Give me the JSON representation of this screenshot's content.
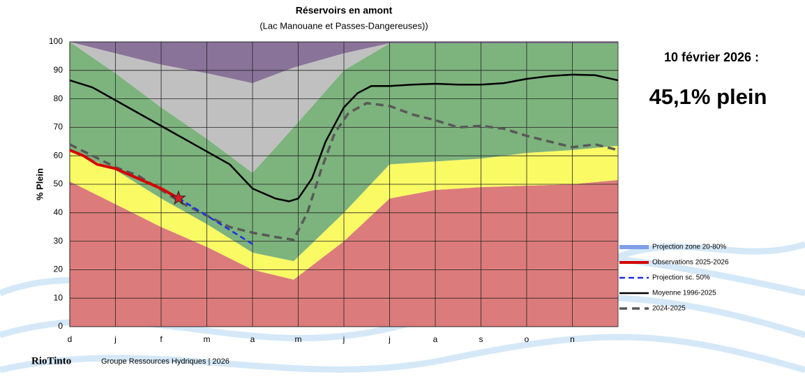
{
  "chart_data": {
    "type": "zone-line",
    "title": "Réservoirs en amont",
    "subtitle": "(Lac Manouane et Passes-Dangereuses))",
    "y_label": "% Plein",
    "xlim": [
      0,
      12
    ],
    "xticks": [
      {
        "value": 0,
        "label": "d"
      },
      {
        "value": 1,
        "label": "j"
      },
      {
        "value": 2,
        "label": "f"
      },
      {
        "value": 3,
        "label": "m"
      },
      {
        "value": 4,
        "label": "a"
      },
      {
        "value": 5,
        "label": "m"
      },
      {
        "value": 6,
        "label": "j"
      },
      {
        "value": 7,
        "label": "j"
      },
      {
        "value": 8,
        "label": "a"
      },
      {
        "value": 9,
        "label": "s"
      },
      {
        "value": 10,
        "label": "o"
      },
      {
        "value": 11,
        "label": "n"
      }
    ],
    "ylim": [
      0,
      100
    ],
    "yticks": [
      0,
      10,
      20,
      30,
      40,
      50,
      60,
      70,
      80,
      90,
      100
    ],
    "grid": true,
    "zone_x": [
      0,
      1,
      2,
      3,
      4,
      4.9,
      6,
      7,
      8,
      9,
      10,
      11,
      12
    ],
    "zones": [
      {
        "color": "#dc7b7b",
        "upper": [
          51,
          43,
          35,
          28,
          20,
          16.5,
          30,
          45,
          48,
          49,
          49.5,
          50,
          51.5
        ]
      },
      {
        "color": "#fafa64",
        "upper": [
          62,
          55,
          45,
          36,
          26,
          23,
          40,
          57,
          58,
          59,
          61,
          62,
          63.5
        ]
      },
      {
        "color": "#7db37d",
        "upper": [
          100,
          89,
          77,
          66,
          54,
          70,
          90,
          99.5,
          99.5,
          99.5,
          99.5,
          99.5,
          99.5
        ]
      },
      {
        "color": "#c0c0c0",
        "upper": [
          100,
          96,
          92,
          89,
          85.5,
          91,
          96,
          99.5,
          99.5,
          99.5,
          99.5,
          99.5,
          99.5
        ]
      },
      {
        "color": "#8a7399",
        "upper": [
          100,
          100,
          100,
          100,
          100,
          100,
          100,
          100,
          100,
          100,
          100,
          100,
          100
        ]
      }
    ],
    "series": [
      {
        "name": "Projection zone 20-80%",
        "color": "#7f9fe8",
        "style": "band"
      },
      {
        "name": "Observations 2025-2026",
        "color": "#d40000",
        "style": "solid-thick",
        "x": [
          0,
          0.3,
          0.6,
          1,
          1.5,
          2,
          2.38
        ],
        "values": [
          62,
          60,
          57,
          55.5,
          52,
          48.5,
          45.1
        ]
      },
      {
        "name": "Projection sc. 50%",
        "color": "#1a2ee8",
        "style": "dash",
        "x": [
          2.38,
          3,
          3.5,
          4
        ],
        "values": [
          45.1,
          39,
          34,
          29
        ]
      },
      {
        "name": "Moyenne 1996-2025",
        "color": "#000000",
        "style": "solid",
        "x": [
          0,
          0.5,
          1,
          1.5,
          2,
          2.5,
          3,
          3.5,
          4,
          4.5,
          4.8,
          5,
          5.3,
          5.6,
          6,
          6.3,
          6.6,
          7,
          7.5,
          8,
          8.5,
          9,
          9.5,
          10,
          10.5,
          11,
          11.5,
          12
        ],
        "values": [
          86.5,
          84,
          79.5,
          75,
          70.5,
          66,
          61.5,
          57,
          48.5,
          45,
          44,
          45,
          52,
          65,
          77,
          82,
          84.5,
          84.5,
          85,
          85.3,
          85,
          85,
          85.5,
          87,
          88,
          88.5,
          88.3,
          86.5
        ]
      },
      {
        "name": "2024-2025",
        "color": "#595959",
        "style": "dash-thick",
        "x": [
          0,
          0.5,
          1,
          1.5,
          2,
          2.5,
          3,
          3.5,
          4,
          4.5,
          4.9,
          5.2,
          5.5,
          5.8,
          6.1,
          6.5,
          7,
          7.5,
          8,
          8.5,
          9,
          9.5,
          10,
          10.5,
          11,
          11.5,
          12
        ],
        "values": [
          64,
          60,
          56,
          53,
          48,
          43,
          39,
          35,
          33,
          31.5,
          30.5,
          40,
          55,
          68,
          75,
          78.5,
          77.5,
          74.5,
          72.5,
          70,
          70.5,
          69.5,
          67,
          65,
          63,
          64,
          62
        ]
      }
    ],
    "marker_series": 1,
    "side_date": "10 février 2026 :",
    "side_value": "45,1% plein",
    "footer_brand": "RioTinto",
    "footer_text": "Groupe Ressources Hydriques | 2026"
  }
}
